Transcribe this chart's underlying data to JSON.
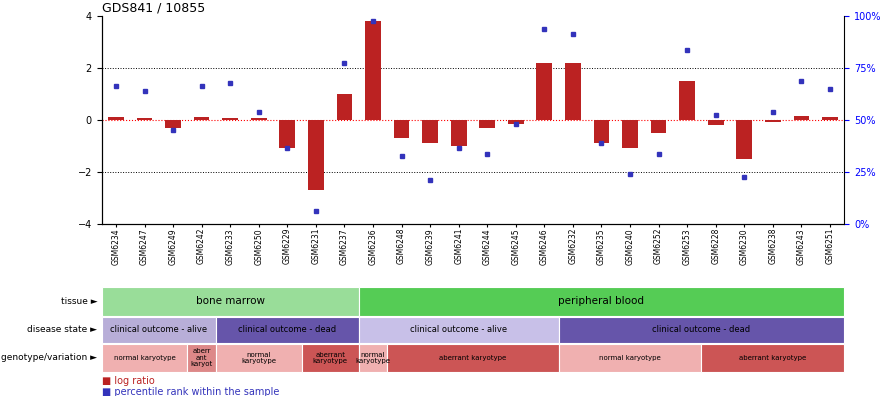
{
  "title": "GDS841 / 10855",
  "samples": [
    "GSM6234",
    "GSM6247",
    "GSM6249",
    "GSM6242",
    "GSM6233",
    "GSM6250",
    "GSM6229",
    "GSM6231",
    "GSM6237",
    "GSM6236",
    "GSM6248",
    "GSM6239",
    "GSM6241",
    "GSM6244",
    "GSM6245",
    "GSM6246",
    "GSM6232",
    "GSM6235",
    "GSM6240",
    "GSM6252",
    "GSM6253",
    "GSM6228",
    "GSM6230",
    "GSM6238",
    "GSM6243",
    "GSM6251"
  ],
  "log_ratio": [
    0.1,
    0.05,
    -0.3,
    0.1,
    0.05,
    0.05,
    -1.1,
    -2.7,
    1.0,
    3.8,
    -0.7,
    -0.9,
    -1.0,
    -0.3,
    -0.15,
    2.2,
    2.2,
    -0.9,
    -1.1,
    -0.5,
    1.5,
    -0.2,
    -1.5,
    -0.1,
    0.15,
    0.1
  ],
  "percentile": [
    1.3,
    1.1,
    -0.4,
    1.3,
    1.4,
    0.3,
    -1.1,
    -3.5,
    2.2,
    3.8,
    -1.4,
    -2.3,
    -1.1,
    -1.3,
    -0.15,
    3.5,
    3.3,
    -0.9,
    -2.1,
    -1.3,
    2.7,
    0.2,
    -2.2,
    0.3,
    1.5,
    1.2
  ],
  "ylim": [
    -4,
    4
  ],
  "yticks_left": [
    -4,
    -2,
    0,
    2,
    4
  ],
  "ytick_labels_right": [
    "0%",
    "25%",
    "50%",
    "75%",
    "100%"
  ],
  "bar_color": "#bb2222",
  "dot_color": "#3333bb",
  "bg_color": "#ffffff",
  "tissue_row": [
    {
      "label": "bone marrow",
      "start": 0,
      "end": 8,
      "color": "#99dd99"
    },
    {
      "label": "peripheral blood",
      "start": 9,
      "end": 25,
      "color": "#55cc55"
    }
  ],
  "disease_row": [
    {
      "label": "clinical outcome - alive",
      "start": 0,
      "end": 3,
      "color": "#b8aed8"
    },
    {
      "label": "clinical outcome - dead",
      "start": 4,
      "end": 8,
      "color": "#6655aa"
    },
    {
      "label": "clinical outcome - alive",
      "start": 9,
      "end": 15,
      "color": "#c8c0e8"
    },
    {
      "label": "clinical outcome - dead",
      "start": 16,
      "end": 25,
      "color": "#6655aa"
    }
  ],
  "geno_row": [
    {
      "label": "normal karyotype",
      "start": 0,
      "end": 2,
      "color": "#f0b0b0"
    },
    {
      "label": "aberr\nant\nkaryot",
      "start": 3,
      "end": 3,
      "color": "#dd8888"
    },
    {
      "label": "normal\nkaryotype",
      "start": 4,
      "end": 6,
      "color": "#f0b0b0"
    },
    {
      "label": "aberrant\nkaryotype",
      "start": 7,
      "end": 8,
      "color": "#cc5555"
    },
    {
      "label": "normal\nkaryotype",
      "start": 9,
      "end": 9,
      "color": "#f0b0b0"
    },
    {
      "label": "aberrant karyotype",
      "start": 10,
      "end": 15,
      "color": "#cc5555"
    },
    {
      "label": "normal karyotype",
      "start": 16,
      "end": 20,
      "color": "#f0b0b0"
    },
    {
      "label": "aberrant karyotype",
      "start": 21,
      "end": 25,
      "color": "#cc5555"
    }
  ],
  "row_labels": [
    "tissue",
    "disease state",
    "genotype/variation"
  ],
  "legend_items": [
    {
      "label": "log ratio",
      "color": "#bb2222"
    },
    {
      "label": "percentile rank within the sample",
      "color": "#3333bb"
    }
  ]
}
